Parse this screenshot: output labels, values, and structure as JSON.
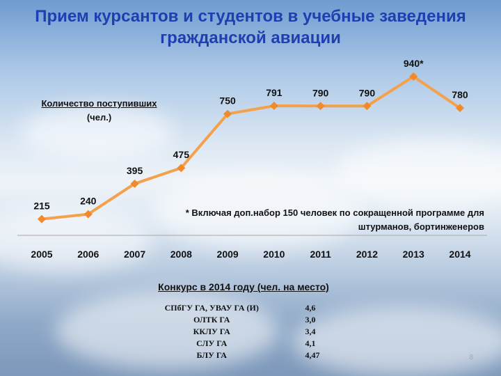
{
  "title": "Прием курсантов и студентов в учебные заведения гражданской авиации",
  "ylabel": {
    "line1": "Количество поступивших",
    "line2": "(чел.)"
  },
  "note": "* Включая доп.набор 150 человек по сокращенной программе для штурманов, бортинженеров",
  "chart_data": {
    "type": "line",
    "categories": [
      "2005",
      "2006",
      "2007",
      "2008",
      "2009",
      "2010",
      "2011",
      "2012",
      "2013",
      "2014"
    ],
    "values": [
      215,
      240,
      395,
      475,
      750,
      791,
      790,
      790,
      940,
      780
    ],
    "data_labels": [
      "215",
      "240",
      "395",
      "475",
      "750",
      "791",
      "790",
      "790",
      "940*",
      "780"
    ],
    "ylabel": "Количество поступивших (чел.)",
    "ylim": [
      150,
      1000
    ],
    "grid": false,
    "line_color": "#f5a04a",
    "marker_color": "#f08a2c"
  },
  "contest": {
    "title": "Конкурс в 2014 году (чел. на место)",
    "rows": [
      {
        "name": "СПбГУ ГА, УВАУ ГА (И)",
        "value": "4,6"
      },
      {
        "name": "ОЛТК ГА",
        "value": "3,0"
      },
      {
        "name": "ККЛУ ГА",
        "value": "3,4"
      },
      {
        "name": "СЛУ ГА",
        "value": "4,1"
      },
      {
        "name": "БЛУ ГА",
        "value": "4,47"
      }
    ]
  },
  "page_number": "8"
}
